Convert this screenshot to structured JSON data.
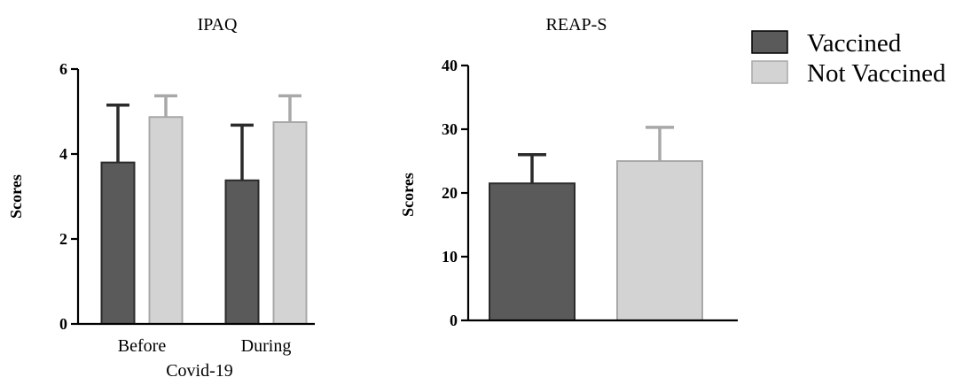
{
  "legend": {
    "entries": [
      {
        "label": "Vaccined",
        "color": "#5a5a5a"
      },
      {
        "label": "Not Vaccined",
        "color": "#d3d3d3"
      }
    ]
  },
  "chart_data": [
    {
      "type": "bar",
      "title": "IPAQ",
      "ylabel": "Scores",
      "xlabel": "Covid-19",
      "ylim": [
        0,
        6
      ],
      "yticks": [
        0,
        2,
        4,
        6
      ],
      "categories": [
        "Before",
        "During"
      ],
      "series": [
        {
          "name": "Vaccined",
          "values": [
            3.8,
            3.38
          ],
          "errors": [
            1.35,
            1.3
          ],
          "color": "#5a5a5a",
          "edge": "#2b2b2b"
        },
        {
          "name": "Not Vaccined",
          "values": [
            4.87,
            4.75
          ],
          "errors": [
            0.5,
            0.62
          ],
          "color": "#d3d3d3",
          "edge": "#a8a8a8"
        }
      ],
      "legend_position": "top-right"
    },
    {
      "type": "bar",
      "title": "REAP-S",
      "ylabel": "Scores",
      "xlabel": "",
      "ylim": [
        0,
        40
      ],
      "yticks": [
        0,
        10,
        20,
        30,
        40
      ],
      "categories": [
        ""
      ],
      "series": [
        {
          "name": "Vaccined",
          "values": [
            21.5
          ],
          "errors": [
            4.5
          ],
          "color": "#5a5a5a",
          "edge": "#2b2b2b"
        },
        {
          "name": "Not Vaccined",
          "values": [
            25.0
          ],
          "errors": [
            5.3
          ],
          "color": "#d3d3d3",
          "edge": "#a8a8a8"
        }
      ],
      "legend_position": "top-right"
    }
  ]
}
